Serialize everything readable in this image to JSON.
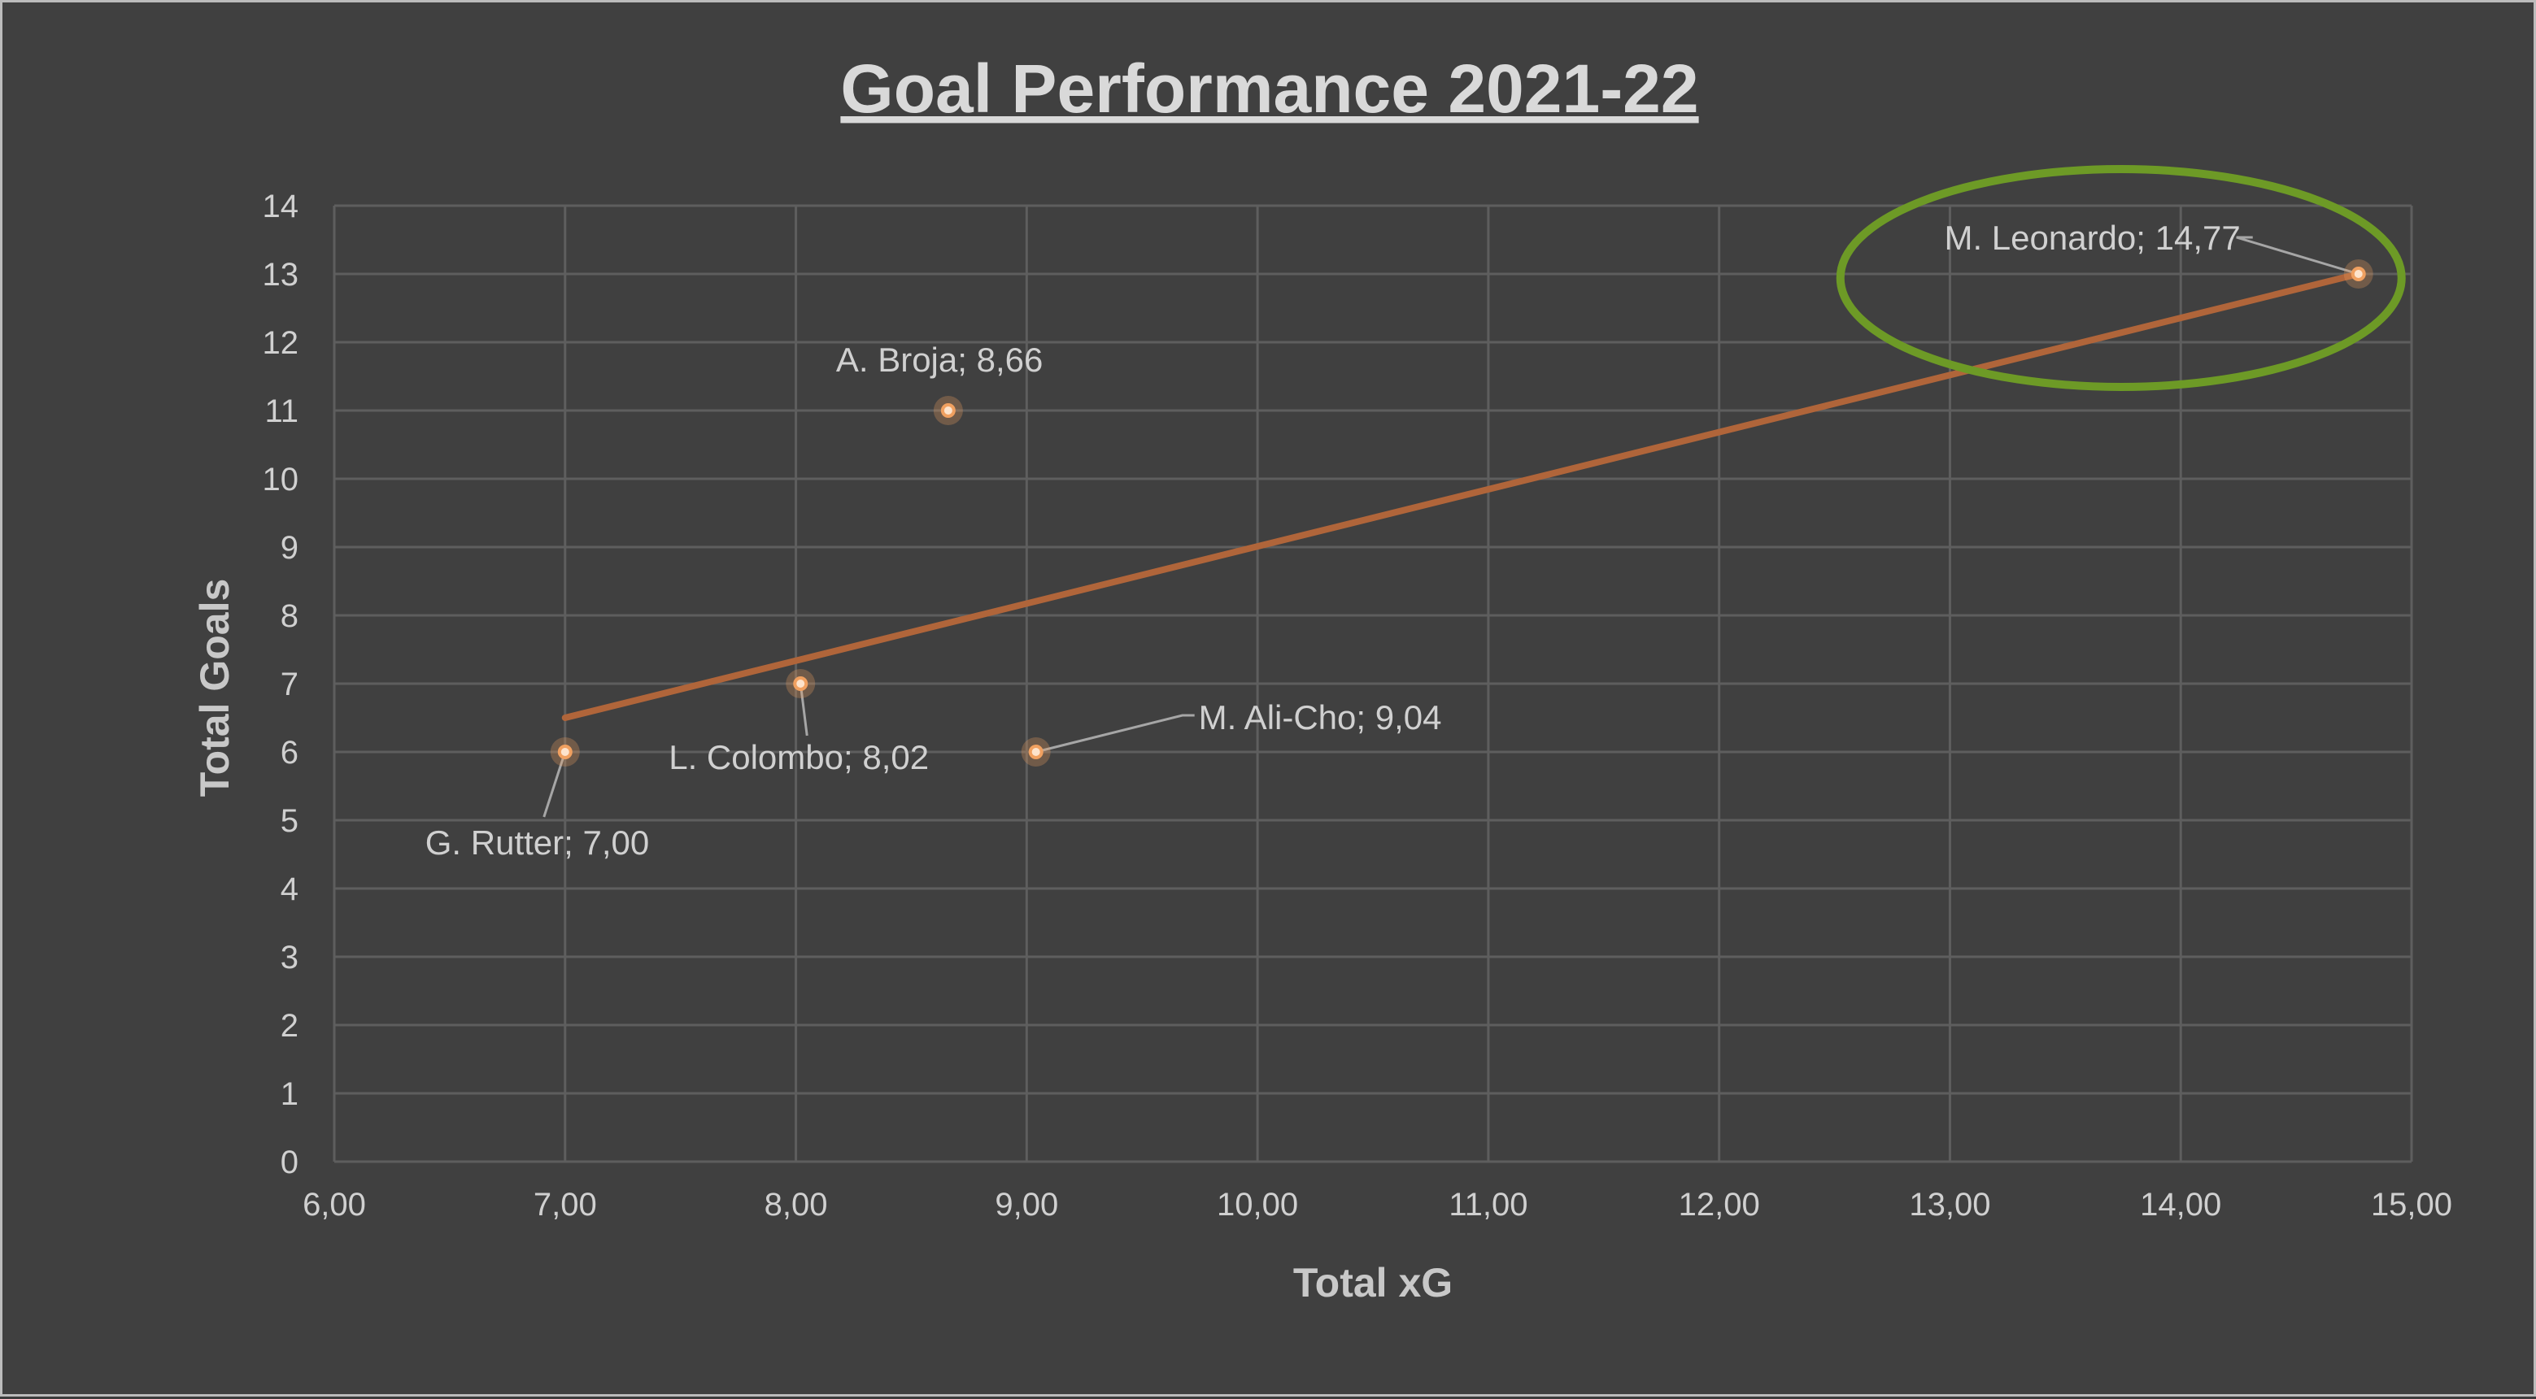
{
  "chart_data": {
    "type": "scatter",
    "title": "Goal Performance 2021-22",
    "xlabel": "Total xG",
    "ylabel": "Total Goals",
    "xlim": [
      6,
      15
    ],
    "ylim": [
      0,
      14
    ],
    "x_ticks": [
      "6,00",
      "7,00",
      "8,00",
      "9,00",
      "10,00",
      "11,00",
      "12,00",
      "13,00",
      "14,00",
      "15,00"
    ],
    "y_ticks": [
      "0",
      "1",
      "2",
      "3",
      "4",
      "5",
      "6",
      "7",
      "8",
      "9",
      "10",
      "11",
      "12",
      "13",
      "14"
    ],
    "grid": true,
    "points": [
      {
        "label": "G. Rutter; 7,00",
        "x": 7.0,
        "y": 6
      },
      {
        "label": "L. Colombo; 8,02",
        "x": 8.02,
        "y": 7
      },
      {
        "label": "A. Broja; 8,66",
        "x": 8.66,
        "y": 11
      },
      {
        "label": "M. Ali-Cho; 9,04",
        "x": 9.04,
        "y": 6
      },
      {
        "label": "M. Leonardo; 14,77",
        "x": 14.77,
        "y": 13
      }
    ],
    "trendline": {
      "x": [
        7.0,
        14.77
      ],
      "y": [
        6.5,
        13.0
      ]
    },
    "highlight": {
      "point_index": 4
    },
    "colors": {
      "point": "#f0a060",
      "trendline": "#b0653a",
      "highlight": "#6d9a26",
      "leader": "#a6a6a6"
    }
  }
}
